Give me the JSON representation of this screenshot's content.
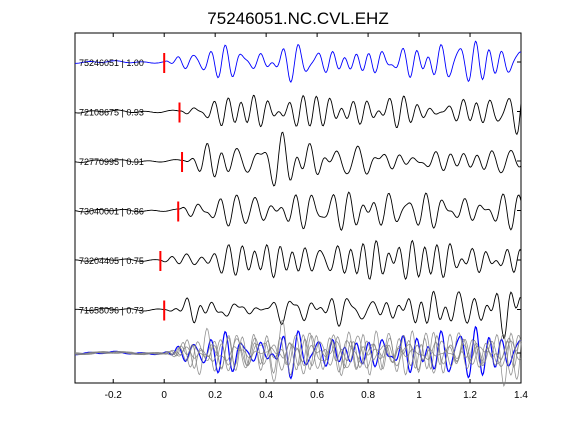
{
  "chart_data": {
    "type": "line",
    "title": "75246051.NC.CVL.EHZ",
    "xlabel": "",
    "ylabel": "",
    "xlim": [
      -0.35,
      1.4
    ],
    "x_ticks": [
      -0.2,
      0,
      0.2,
      0.4,
      0.6,
      0.8,
      1,
      1.2,
      1.4
    ],
    "x_tick_labels": [
      "-0.2",
      "0",
      "0.2",
      "0.4",
      "0.6",
      "0.8",
      "1",
      "1.2",
      "1.4"
    ],
    "grid": false,
    "colors": {
      "reference": "#0000ff",
      "trace": "#000000",
      "pick": "#ff0000",
      "stack": "#808080"
    },
    "series": [
      {
        "label": "75246051 | 1.00",
        "pick": 0.0,
        "reference": true
      },
      {
        "label": "72108675 | 0.93",
        "pick": 0.06
      },
      {
        "label": "72770995 | 0.91",
        "pick": 0.07
      },
      {
        "label": "73040001 | 0.86",
        "pick": 0.055
      },
      {
        "label": "73204405 | 0.75",
        "pick": -0.015
      },
      {
        "label": "71658096 | 0.73",
        "pick": 0.0
      }
    ],
    "stack": {
      "overlay_of": "all traces",
      "aligned_on": "pick"
    }
  }
}
